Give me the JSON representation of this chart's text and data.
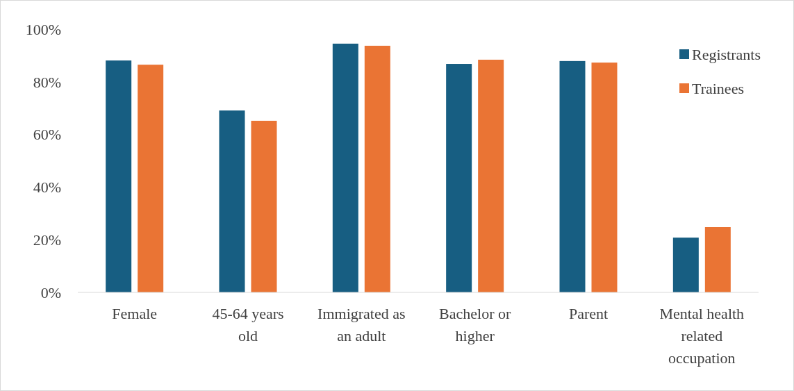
{
  "chart_data": {
    "type": "bar",
    "categories": [
      "Female",
      "45-64 years old",
      "Immigrated as an adult",
      "Bachelor or higher",
      "Parent",
      "Mental health related occupation"
    ],
    "series": [
      {
        "name": "Registrants",
        "color": "#175e82",
        "values": [
          88.1,
          69.1,
          94.5,
          86.8,
          87.9,
          20.8
        ]
      },
      {
        "name": "Trainees",
        "color": "#ea7434",
        "values": [
          86.5,
          65.2,
          93.7,
          88.4,
          87.3,
          24.8
        ]
      }
    ],
    "ylim": [
      0,
      100
    ],
    "yticks": [
      {
        "value": 0,
        "label": "0%"
      },
      {
        "value": 20,
        "label": "20%"
      },
      {
        "value": 40,
        "label": "40%"
      },
      {
        "value": 60,
        "label": "60%"
      },
      {
        "value": 80,
        "label": "80%"
      },
      {
        "value": 100,
        "label": "100%"
      }
    ],
    "grid": false,
    "legend": "top right"
  }
}
